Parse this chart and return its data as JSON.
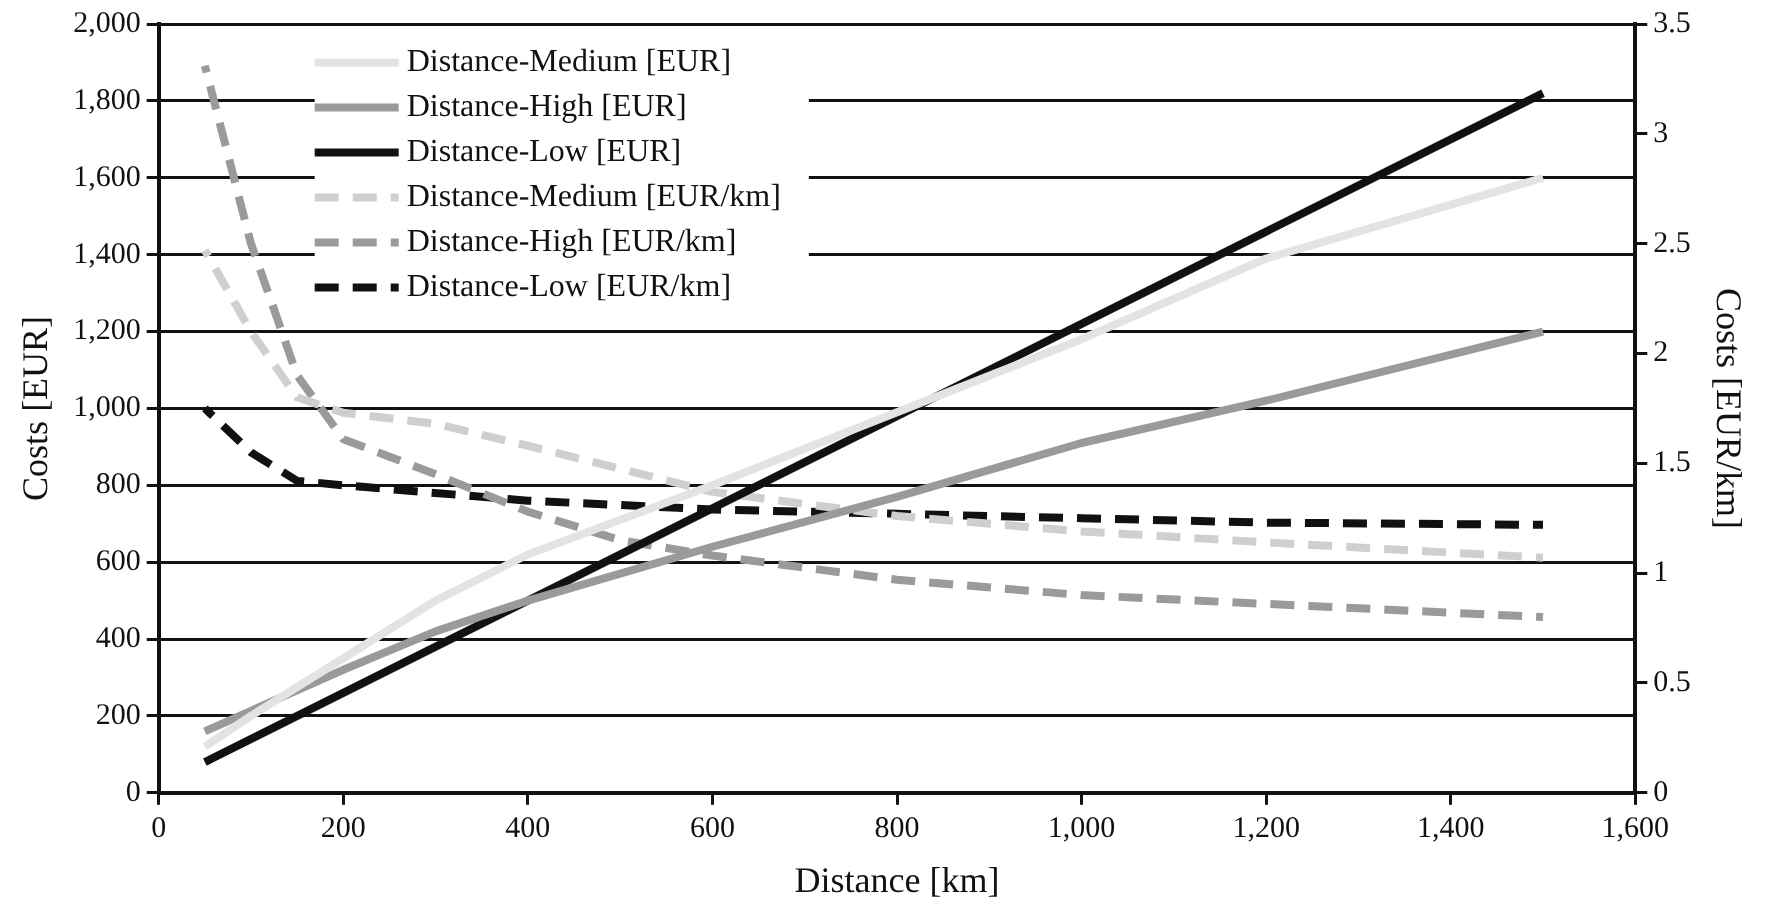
{
  "chart_data": {
    "type": "line",
    "xlabel": "Distance [km]",
    "ylabel": "Costs [EUR]",
    "y2label": "Costs [EUR/km]",
    "xlim": [
      0,
      1600
    ],
    "xticks": [
      0,
      200,
      400,
      600,
      800,
      {
        "value": 1000,
        "label": "1,000"
      },
      {
        "value": 1200,
        "label": "1,200"
      },
      {
        "value": 1400,
        "label": "1,400"
      },
      {
        "value": 1600,
        "label": "1,600"
      }
    ],
    "ylim": [
      0,
      2000
    ],
    "yticks": [
      0,
      200,
      400,
      600,
      800,
      {
        "value": 1000,
        "label": "1,000"
      },
      {
        "value": 1200,
        "label": "1,200"
      },
      {
        "value": 1400,
        "label": "1,400"
      },
      {
        "value": 1600,
        "label": "1,600"
      },
      {
        "value": 1800,
        "label": "1,800"
      },
      {
        "value": 2000,
        "label": "2,000"
      }
    ],
    "y2lim": [
      0,
      3.5
    ],
    "y2ticks": [
      0,
      0.5,
      1,
      1.5,
      2,
      2.5,
      3,
      3.5
    ],
    "grid": "y",
    "legend": "top left",
    "marker": "none",
    "series": [
      {
        "name": "Distance-Medium [EUR]",
        "color": "#e3e3e3",
        "line_style": "solid",
        "x": [
          50,
          100,
          200,
          300,
          400,
          600,
          800,
          1000,
          1200,
          1500
        ],
        "values": [
          120,
          200,
          350,
          500,
          620,
          800,
          990,
          1180,
          1390,
          1600
        ]
      },
      {
        "name": "Distance-High [EUR]",
        "color": "#9a9a9a",
        "line_style": "solid",
        "x": [
          50,
          200,
          300,
          400,
          500,
          600,
          800,
          1000,
          1200,
          1500
        ],
        "values": [
          160,
          320,
          420,
          500,
          570,
          640,
          770,
          910,
          1020,
          1200
        ]
      },
      {
        "name": "Distance-Low [EUR]",
        "color": "#111111",
        "line_style": "solid",
        "x": [
          50,
          200,
          400,
          600,
          800,
          1000,
          1200,
          1500
        ],
        "values": [
          80,
          260,
          500,
          740,
          980,
          1220,
          1460,
          1820
        ]
      },
      {
        "name": "Distance-Medium [EUR/km]",
        "color": "#cfcfcf",
        "line_style": "dashed",
        "axis": "y2",
        "x": [
          50,
          100,
          150,
          200,
          300,
          400,
          600,
          800,
          1000,
          1200,
          1500
        ],
        "values": [
          2.47,
          2.1,
          1.8,
          1.73,
          1.68,
          1.58,
          1.37,
          1.26,
          1.19,
          1.14,
          1.07
        ]
      },
      {
        "name": "Distance-High [EUR/km]",
        "color": "#9a9a9a",
        "line_style": "dashed",
        "axis": "y2",
        "x": [
          50,
          100,
          150,
          200,
          300,
          400,
          500,
          600,
          800,
          1000,
          1200,
          1500
        ],
        "values": [
          3.31,
          2.5,
          1.9,
          1.61,
          1.45,
          1.28,
          1.15,
          1.08,
          0.97,
          0.9,
          0.86,
          0.8
        ]
      },
      {
        "name": "Distance-Low [EUR/km]",
        "color": "#111111",
        "line_style": "dashed",
        "axis": "y2",
        "x": [
          50,
          100,
          150,
          200,
          400,
          600,
          800,
          1000,
          1200,
          1500
        ],
        "values": [
          1.75,
          1.55,
          1.42,
          1.4,
          1.33,
          1.29,
          1.27,
          1.25,
          1.23,
          1.22
        ]
      }
    ]
  }
}
